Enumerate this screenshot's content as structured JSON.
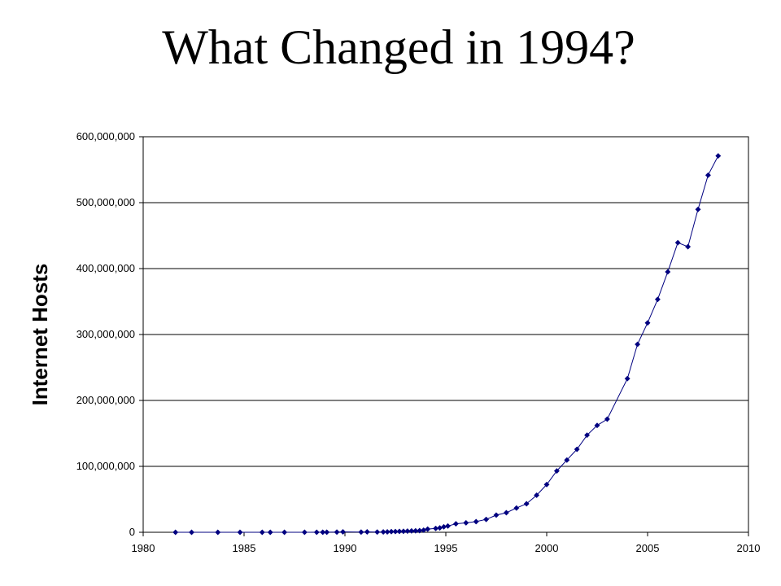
{
  "slide": {
    "title": "What Changed in 1994?"
  },
  "chart_data": {
    "type": "line",
    "title": "",
    "xlabel": "",
    "ylabel": "Internet Hosts",
    "xlim": [
      1980,
      2010
    ],
    "ylim": [
      0,
      600000000
    ],
    "x_ticks": [
      "1980",
      "1985",
      "1990",
      "1995",
      "2000",
      "2005",
      "2010"
    ],
    "y_ticks": [
      "0",
      "100,000,000",
      "200,000,000",
      "300,000,000",
      "400,000,000",
      "500,000,000",
      "600,000,000"
    ],
    "grid": "horizontal",
    "marker": "diamond",
    "color": "#000080",
    "legend": "none",
    "series": [
      {
        "x": [
          1981.6,
          1982.4,
          1983.7,
          1984.8,
          1985.9,
          1986.3,
          1987.0,
          1988.0,
          1988.6,
          1988.9,
          1989.1,
          1989.6,
          1989.9,
          1990.8,
          1991.1,
          1991.6,
          1991.9,
          1992.1,
          1992.3,
          1992.5,
          1992.7,
          1992.9,
          1993.1,
          1993.3,
          1993.5,
          1993.7,
          1993.9,
          1994.1,
          1994.5,
          1994.7,
          1994.9,
          1995.1,
          1995.5,
          1996.0,
          1996.5,
          1997.0,
          1997.5,
          1998.0,
          1998.5,
          1999.0,
          1999.5,
          2000.0,
          2000.5,
          2001.0,
          2001.5,
          2002.0,
          2002.5,
          2003.0,
          2004.0,
          2004.5,
          2005.0,
          2005.5,
          2006.0,
          2006.5,
          2007.0,
          2007.5,
          2008.0,
          2008.5
        ],
        "values": [
          200,
          235,
          562,
          1000,
          2000,
          5000,
          28000,
          56000,
          80000,
          130000,
          160000,
          313000,
          617000,
          313000,
          617000,
          376000,
          535000,
          617000,
          992000,
          1136000,
          1313000,
          1486000,
          1776000,
          2056000,
          2217000,
          2456000,
          3212000,
          4852000,
          5846000,
          6642000,
          8200000,
          9472000,
          12881000,
          14352000,
          16146000,
          19540000,
          26053000,
          29670000,
          36739000,
          43230000,
          56218000,
          72398000,
          93047000,
          109574000,
          125888000,
          147345000,
          162128000,
          171638000,
          233101000,
          285139000,
          317646000,
          353284000,
          394991000,
          439286000,
          433193000,
          489774000,
          541677000,
          570937000
        ]
      }
    ]
  }
}
